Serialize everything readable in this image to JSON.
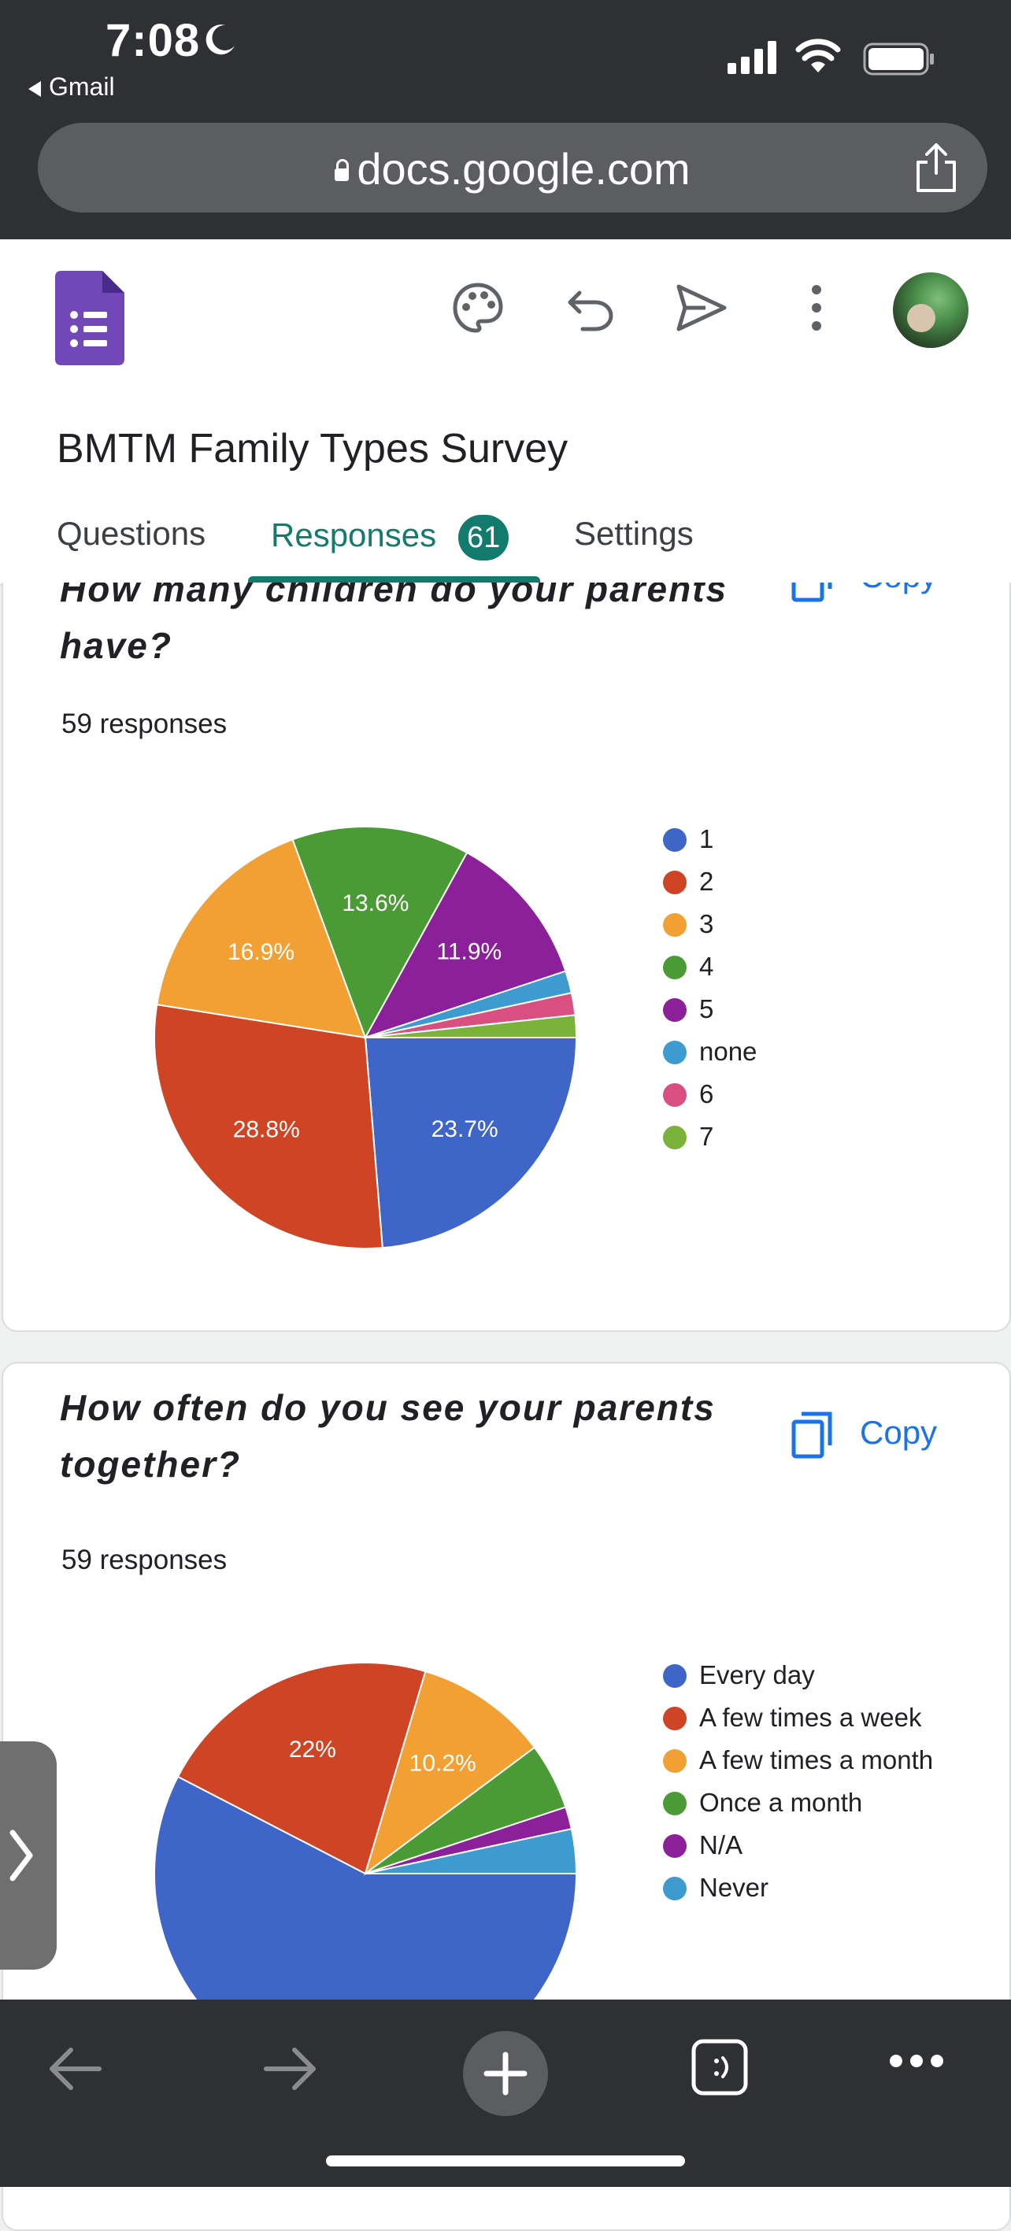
{
  "status_bar": {
    "time": "7:08",
    "back_app": "Gmail"
  },
  "browser": {
    "url": "docs.google.com"
  },
  "header": {
    "form_title": "BMTM Family Types Survey"
  },
  "tabs": [
    {
      "label": "Questions"
    },
    {
      "label": "Responses",
      "badge": "61"
    },
    {
      "label": "Settings"
    }
  ],
  "questions": [
    {
      "title": "How many children do your parents have?",
      "responses_text": "59 responses",
      "copy_label": "Copy",
      "chart_data": {
        "type": "pie",
        "categories": [
          "1",
          "2",
          "3",
          "4",
          "5",
          "none",
          "6",
          "7"
        ],
        "values": [
          23.7,
          28.8,
          16.9,
          13.6,
          11.9,
          1.7,
          1.7,
          1.7
        ],
        "data_labels": [
          "23.7%",
          "28.8%",
          "16.9%",
          "13.6%",
          "11.9%",
          "",
          "",
          ""
        ],
        "colors": [
          "#3f65c8",
          "#cf4424",
          "#f2a033",
          "#4a9a35",
          "#8c1f9a",
          "#3d9bd0",
          "#d94f7f",
          "#7bb23a"
        ],
        "legend": "right"
      }
    },
    {
      "title": "How often do you see your parents together?",
      "responses_text": "59 responses",
      "copy_label": "Copy",
      "chart_data": {
        "type": "pie",
        "categories": [
          "Every day",
          "A few times a week",
          "A few times a month",
          "Once a month",
          "N/A",
          "Never"
        ],
        "values": [
          57.6,
          22.0,
          10.2,
          5.1,
          1.7,
          3.4
        ],
        "data_labels": [
          "",
          "22%",
          "10.2%",
          "",
          "",
          ""
        ],
        "colors": [
          "#3f65c8",
          "#cf4424",
          "#f2a033",
          "#4a9a35",
          "#8c1f9a",
          "#3d9bd0"
        ],
        "legend": "right"
      }
    }
  ]
}
